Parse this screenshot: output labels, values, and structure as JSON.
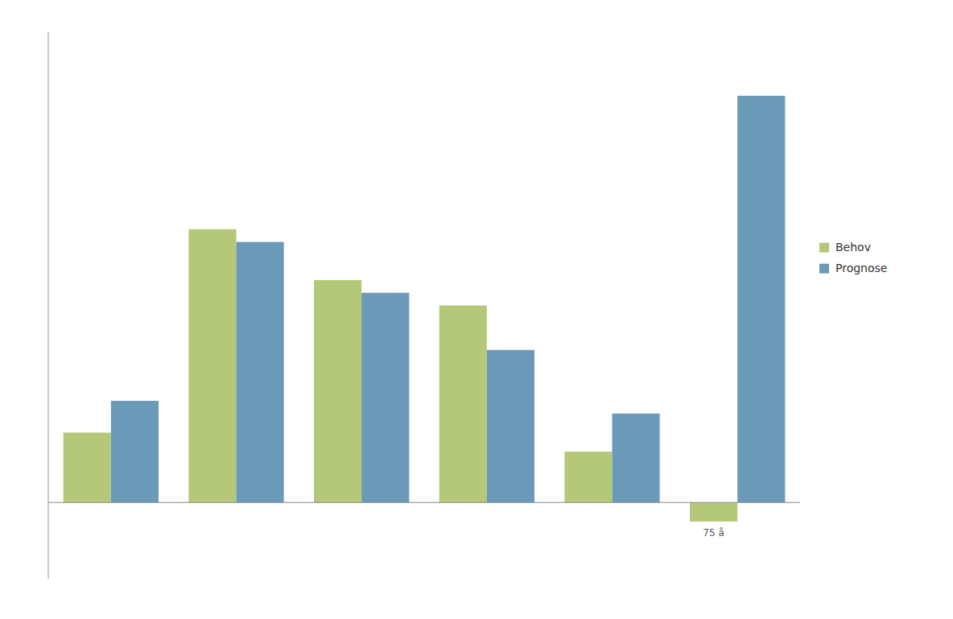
{
  "chart_data": {
    "type": "bar",
    "categories": [
      null,
      null,
      null,
      null,
      null,
      null
    ],
    "series": [
      {
        "name": "Behov",
        "color": "#b5c87a",
        "values": [
          55,
          215,
          175,
          155,
          40,
          -15
        ]
      },
      {
        "name": "Prognose",
        "color": "#6b9ab8",
        "values": [
          80,
          205,
          165,
          120,
          70,
          320
        ]
      }
    ],
    "annotations": [
      {
        "text": "75 å"
      }
    ],
    "ylim": [
      -60,
      370
    ],
    "yticks": [],
    "grid": false,
    "tick_labels": false,
    "legend": "right"
  }
}
